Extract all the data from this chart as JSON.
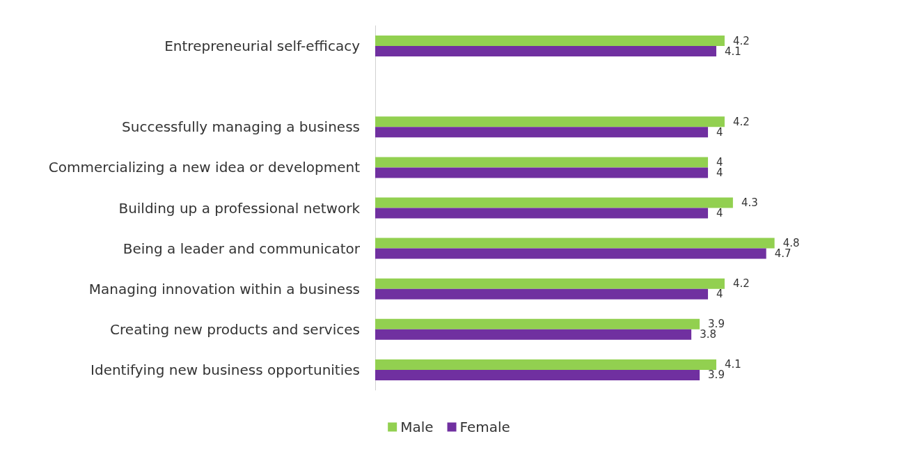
{
  "chart_data": {
    "type": "bar",
    "orientation": "horizontal",
    "categories": [
      "Entrepreneurial self-efficacy",
      null,
      "Successfully managing a business",
      "Commercializing a new idea or development",
      "Building up a professional network",
      "Being a leader and communicator",
      "Managing innovation within a business",
      "Creating new products and services",
      "Identifying new business opportunities"
    ],
    "series": [
      {
        "name": "Male",
        "color": "#92d050",
        "values": [
          4.2,
          null,
          4.2,
          4,
          4.3,
          4.8,
          4.2,
          3.9,
          4.1
        ]
      },
      {
        "name": "Female",
        "color": "#7030a0",
        "values": [
          4.1,
          null,
          4,
          4,
          4,
          4.7,
          4,
          3.8,
          3.9
        ]
      }
    ],
    "data_labels": true,
    "legend": "bottom",
    "grid": false
  }
}
